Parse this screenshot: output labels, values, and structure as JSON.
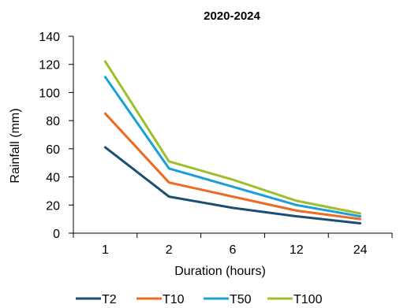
{
  "chart_data": {
    "type": "line",
    "title": "2020-2024",
    "xlabel": "Duration (hours)",
    "ylabel": "Rainfall (mm)",
    "categories": [
      "1",
      "2",
      "6",
      "12",
      "24"
    ],
    "ylim": [
      0,
      140
    ],
    "yticks": [
      "0",
      "20",
      "40",
      "60",
      "80",
      "100",
      "120",
      "140"
    ],
    "grid": false,
    "legend_position": "bottom",
    "series": [
      {
        "name": "T2",
        "color": "#1b4f72",
        "values": [
          61,
          26,
          18,
          12,
          7
        ]
      },
      {
        "name": "T10",
        "color": "#ed6a23",
        "values": [
          85,
          36,
          26,
          16,
          10
        ]
      },
      {
        "name": "T50",
        "color": "#1a9fd6",
        "values": [
          111,
          46,
          33,
          20,
          12
        ]
      },
      {
        "name": "T100",
        "color": "#9cbf2c",
        "values": [
          122,
          51,
          38,
          23,
          14
        ]
      }
    ]
  }
}
